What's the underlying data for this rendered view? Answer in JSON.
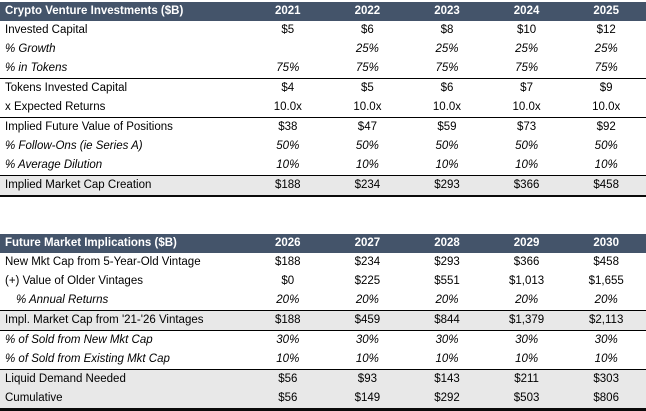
{
  "colors": {
    "header_bg": "#44546A",
    "header_text": "#FFFFFF",
    "shaded_row_bg": "#E8E8E8",
    "border": "#000000"
  },
  "tables": [
    {
      "title": "Crypto Venture Investments ($B)",
      "years": [
        "2021",
        "2022",
        "2023",
        "2024",
        "2025"
      ],
      "rows": [
        {
          "label": "Invested Capital",
          "values": [
            "$5",
            "$6",
            "$8",
            "$10",
            "$12"
          ],
          "style": ""
        },
        {
          "label": "% Growth",
          "values": [
            "",
            "25%",
            "25%",
            "25%",
            "25%"
          ],
          "style": "italic"
        },
        {
          "label": "% in Tokens",
          "values": [
            "75%",
            "75%",
            "75%",
            "75%",
            "75%"
          ],
          "style": "italic"
        },
        {
          "label": "Tokens Invested Capital",
          "values": [
            "$4",
            "$5",
            "$6",
            "$7",
            "$9"
          ],
          "style": "rule-top"
        },
        {
          "label": "x Expected Returns",
          "values": [
            "10.0x",
            "10.0x",
            "10.0x",
            "10.0x",
            "10.0x"
          ],
          "style": ""
        },
        {
          "label": "Implied Future Value of Positions",
          "values": [
            "$38",
            "$47",
            "$59",
            "$73",
            "$92"
          ],
          "style": "rule-top"
        },
        {
          "label": "% Follow-Ons (ie Series A)",
          "values": [
            "50%",
            "50%",
            "50%",
            "50%",
            "50%"
          ],
          "style": "italic"
        },
        {
          "label": "% Average Dilution",
          "values": [
            "10%",
            "10%",
            "10%",
            "10%",
            "10%"
          ],
          "style": "italic"
        },
        {
          "label": "Implied Market Cap Creation",
          "values": [
            "$188",
            "$234",
            "$293",
            "$366",
            "$458"
          ],
          "style": "bold shaded rule-top end-medium"
        }
      ]
    },
    {
      "title": "Future Market Implications ($B)",
      "years": [
        "2026",
        "2027",
        "2028",
        "2029",
        "2030"
      ],
      "rows": [
        {
          "label": "New Mkt Cap from 5-Year-Old Vintage",
          "values": [
            "$188",
            "$234",
            "$293",
            "$366",
            "$458"
          ],
          "style": ""
        },
        {
          "label": "(+) Value of Older Vintages",
          "values": [
            "$0",
            "$225",
            "$551",
            "$1,013",
            "$1,655"
          ],
          "style": ""
        },
        {
          "label": "% Annual Returns",
          "values": [
            "20%",
            "20%",
            "20%",
            "20%",
            "20%"
          ],
          "style": "italic indent"
        },
        {
          "label": "Impl. Market Cap from '21-'26 Vintages",
          "values": [
            "$188",
            "$459",
            "$844",
            "$1,379",
            "$2,113"
          ],
          "style": "bold shaded rule-top rule-bottom"
        },
        {
          "label": "% of Sold from New Mkt Cap",
          "values": [
            "30%",
            "30%",
            "30%",
            "30%",
            "30%"
          ],
          "style": "italic"
        },
        {
          "label": "% of Sold from Existing Mkt Cap",
          "values": [
            "10%",
            "10%",
            "10%",
            "10%",
            "10%"
          ],
          "style": "italic"
        },
        {
          "label": "Liquid Demand Needed",
          "values": [
            "$56",
            "$93",
            "$143",
            "$211",
            "$303"
          ],
          "style": "shaded rule-top"
        },
        {
          "label": "Cumulative",
          "values": [
            "$56",
            "$149",
            "$292",
            "$503",
            "$806"
          ],
          "style": "bold shaded end-heavy"
        }
      ]
    }
  ]
}
